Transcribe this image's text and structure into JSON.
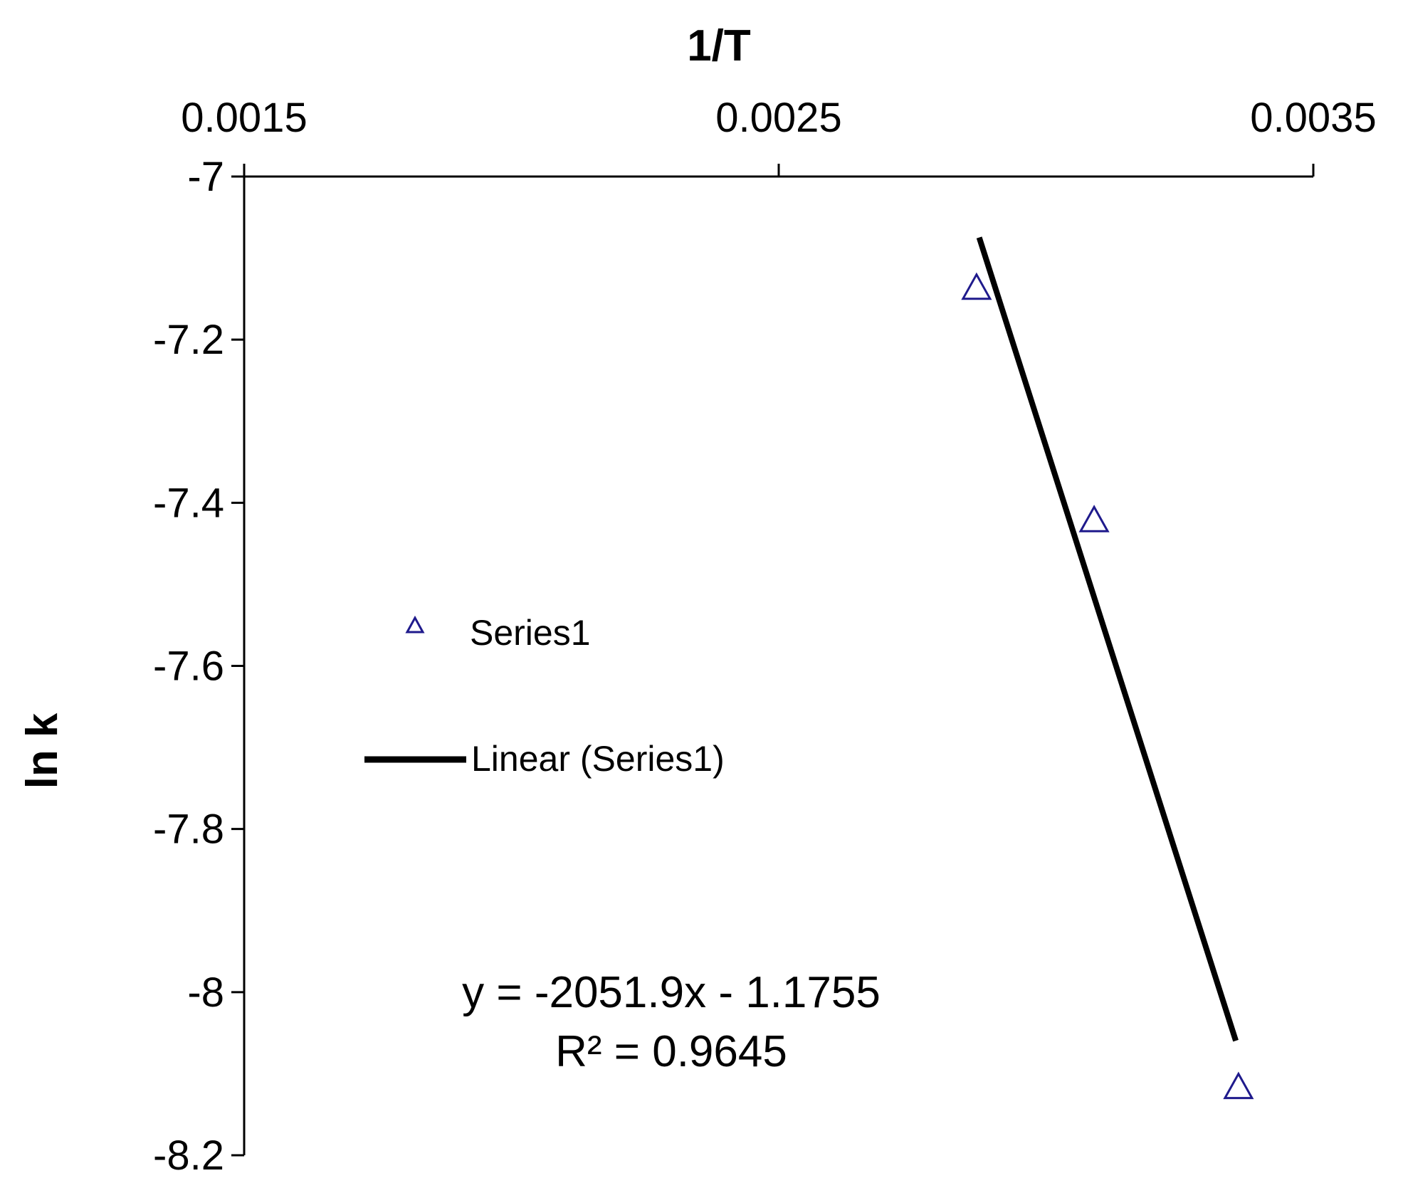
{
  "chart_data": {
    "type": "scatter",
    "xlabel": "1/T",
    "ylabel": "ln k",
    "xlim": [
      0.0015,
      0.0035
    ],
    "ylim": [
      -8.2,
      -7.0
    ],
    "x_ticks": [
      "0.0015",
      "0.0025",
      "0.0035"
    ],
    "y_ticks": [
      "-7",
      "-7.2",
      "-7.4",
      "-7.6",
      "-7.8",
      "-8",
      "-8.2"
    ],
    "x_axis_position": "top",
    "y_axis_inverted": true,
    "grid": false,
    "legend_position": "left",
    "series": [
      {
        "name": "Series1",
        "marker": "triangle-open",
        "color": "#1f1a8c",
        "points": [
          {
            "x": 0.00287,
            "y": -7.135
          },
          {
            "x": 0.00309,
            "y": -7.42
          },
          {
            "x": 0.00336,
            "y": -8.115
          }
        ]
      }
    ],
    "trendline": {
      "name": "Linear (Series1)",
      "color": "#000000",
      "slope": -2051.9,
      "intercept": -1.1755,
      "x_range": [
        0.002875,
        0.003355
      ]
    },
    "annotations": {
      "equation": "y = -2051.9x - 1.1755",
      "r_squared": "R² = 0.9645"
    }
  }
}
